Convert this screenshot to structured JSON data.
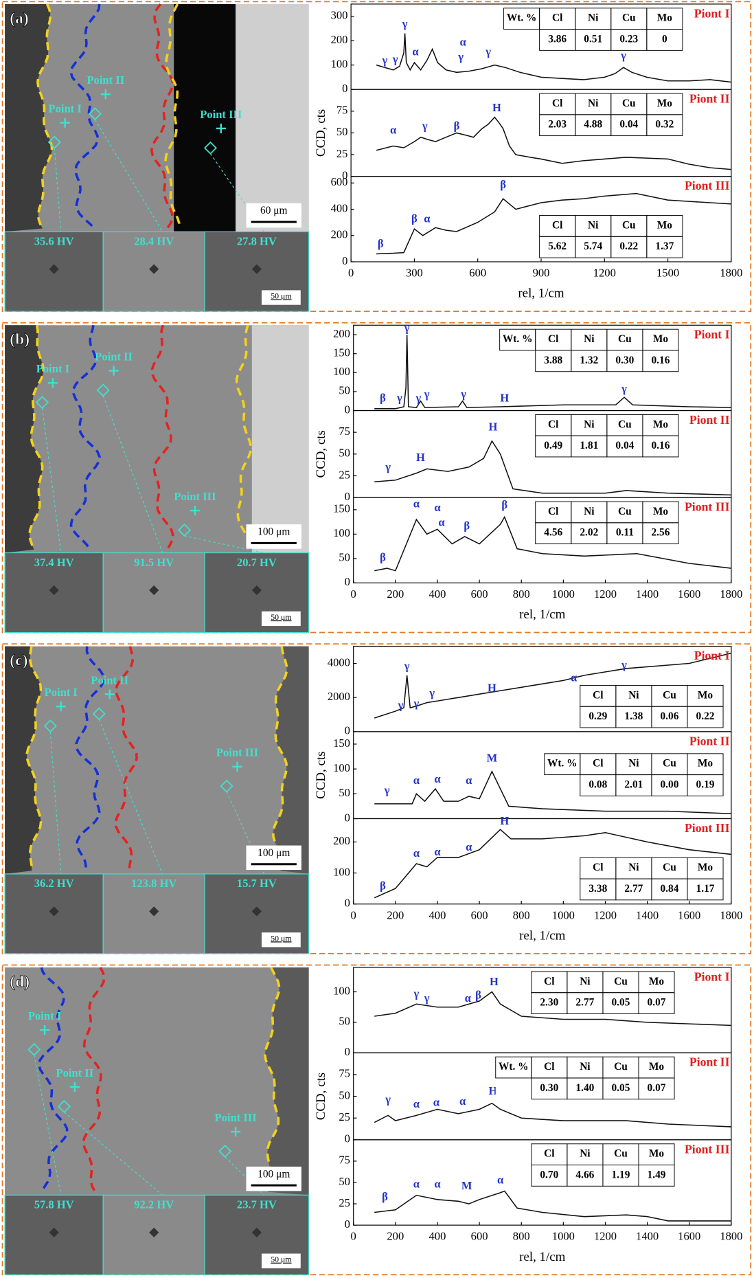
{
  "chart_data": [
    {
      "type": "line",
      "title": "Piont I",
      "xlim": [
        0,
        1800
      ],
      "ylim": [
        0,
        350
      ],
      "yticks": [
        0,
        100,
        200,
        300
      ],
      "x": [
        120,
        160,
        200,
        230,
        250,
        255,
        262,
        280,
        300,
        330,
        360,
        385,
        410,
        450,
        500,
        560,
        620,
        680,
        730,
        800,
        900,
        1000,
        1100,
        1200,
        1250,
        1290,
        1330,
        1400,
        1500,
        1600,
        1700,
        1800
      ],
      "values": [
        100,
        90,
        80,
        95,
        150,
        230,
        110,
        80,
        110,
        80,
        120,
        165,
        110,
        80,
        70,
        75,
        85,
        100,
        90,
        70,
        50,
        45,
        40,
        50,
        65,
        90,
        70,
        50,
        35,
        35,
        40,
        30
      ],
      "annotations": [
        {
          "text": "γ",
          "x": 160,
          "y": 115
        },
        {
          "text": "γ",
          "x": 210,
          "y": 120
        },
        {
          "text": "γ",
          "x": 255,
          "y": 265
        },
        {
          "text": "α",
          "x": 305,
          "y": 150
        },
        {
          "text": "γ",
          "x": 520,
          "y": 130
        },
        {
          "text": "α",
          "x": 530,
          "y": 190
        },
        {
          "text": "γ",
          "x": 650,
          "y": 150
        },
        {
          "text": "γ",
          "x": 1290,
          "y": 135
        }
      ],
      "table": {
        "header": [
          "Wt. %",
          "Cl",
          "Ni",
          "Cu",
          "Mo"
        ],
        "row": [
          "3.86",
          "0.51",
          "0.23",
          "0"
        ]
      }
    },
    {
      "type": "line",
      "title": "Piont II",
      "xlim": [
        0,
        1800
      ],
      "ylim": [
        0,
        100
      ],
      "yticks": [
        0,
        25,
        50,
        75
      ],
      "ylabel": "CCD, cts",
      "x": [
        120,
        200,
        250,
        300,
        330,
        370,
        400,
        450,
        500,
        550,
        580,
        620,
        650,
        680,
        700,
        720,
        750,
        780,
        850,
        900,
        1000,
        1100,
        1200,
        1300,
        1400,
        1500,
        1600,
        1700,
        1800
      ],
      "values": [
        30,
        35,
        33,
        40,
        45,
        42,
        40,
        45,
        50,
        47,
        45,
        55,
        60,
        68,
        62,
        55,
        35,
        25,
        22,
        20,
        15,
        18,
        20,
        22,
        21,
        20,
        14,
        10,
        8
      ],
      "annotations": [
        {
          "text": "α",
          "x": 200,
          "y": 52
        },
        {
          "text": "γ",
          "x": 350,
          "y": 57
        },
        {
          "text": "β",
          "x": 500,
          "y": 57
        },
        {
          "text": "H",
          "x": 690,
          "y": 78
        }
      ],
      "table": {
        "header": [
          "Cl",
          "Ni",
          "Cu",
          "Mo"
        ],
        "row": [
          "2.03",
          "4.88",
          "0.04",
          "0.32"
        ]
      }
    },
    {
      "type": "line",
      "title": "Piont III",
      "xlim": [
        0,
        1800
      ],
      "ylim": [
        0,
        650
      ],
      "yticks": [
        0,
        200,
        400,
        600
      ],
      "xticks": [
        0,
        300,
        600,
        900,
        1200,
        1500,
        1800
      ],
      "xlabel": "rel, 1/cm",
      "x": [
        120,
        200,
        250,
        300,
        340,
        400,
        450,
        500,
        600,
        680,
        720,
        780,
        900,
        1000,
        1100,
        1200,
        1350,
        1500,
        1600,
        1700,
        1800
      ],
      "values": [
        60,
        65,
        70,
        250,
        200,
        260,
        240,
        230,
        300,
        380,
        480,
        400,
        450,
        470,
        480,
        500,
        520,
        470,
        460,
        450,
        440
      ],
      "annotations": [
        {
          "text": "β",
          "x": 140,
          "y": 130
        },
        {
          "text": "β",
          "x": 300,
          "y": 320
        },
        {
          "text": "α",
          "x": 360,
          "y": 320
        },
        {
          "text": "β",
          "x": 720,
          "y": 580
        }
      ],
      "table": {
        "header": [
          "Cl",
          "Ni",
          "Cu",
          "Mo"
        ],
        "row": [
          "5.62",
          "5.74",
          "0.22",
          "1.37"
        ]
      }
    },
    {
      "type": "line",
      "title": "Piont I",
      "xlim": [
        0,
        1800
      ],
      "ylim": [
        0,
        225
      ],
      "yticks": [
        0,
        50,
        100,
        150,
        200
      ],
      "x": [
        100,
        200,
        240,
        250,
        255,
        262,
        300,
        320,
        340,
        500,
        520,
        540,
        700,
        1000,
        1250,
        1290,
        1330,
        1600,
        1800
      ],
      "values": [
        5,
        5,
        10,
        60,
        200,
        10,
        8,
        25,
        8,
        10,
        25,
        8,
        10,
        15,
        15,
        35,
        15,
        10,
        8
      ],
      "annotations": [
        {
          "text": "β",
          "x": 140,
          "y": 30
        },
        {
          "text": "γ",
          "x": 220,
          "y": 30
        },
        {
          "text": "γ",
          "x": 255,
          "y": 215
        },
        {
          "text": "γ",
          "x": 310,
          "y": 30
        },
        {
          "text": "γ",
          "x": 350,
          "y": 40
        },
        {
          "text": "γ",
          "x": 525,
          "y": 40
        },
        {
          "text": "H",
          "x": 720,
          "y": 30
        },
        {
          "text": "γ",
          "x": 1290,
          "y": 55
        }
      ],
      "table": {
        "header": [
          "Wt. %",
          "Cl",
          "Ni",
          "Cu",
          "Mo"
        ],
        "row": [
          "3.88",
          "1.32",
          "0.30",
          "0.16"
        ]
      }
    },
    {
      "type": "line",
      "title": "Piont II",
      "xlim": [
        0,
        1800
      ],
      "ylim": [
        0,
        100
      ],
      "yticks": [
        0,
        25,
        50,
        75
      ],
      "ylabel": "CCD, cts",
      "x": [
        100,
        200,
        300,
        350,
        450,
        550,
        620,
        660,
        700,
        760,
        900,
        1200,
        1300,
        1500,
        1800
      ],
      "values": [
        18,
        20,
        28,
        33,
        30,
        35,
        45,
        65,
        50,
        10,
        5,
        5,
        8,
        5,
        3
      ],
      "annotations": [
        {
          "text": "γ",
          "x": 165,
          "y": 34
        },
        {
          "text": "H",
          "x": 320,
          "y": 45
        },
        {
          "text": "H",
          "x": 665,
          "y": 80
        }
      ],
      "table": {
        "header": [
          "Cl",
          "Ni",
          "Cu",
          "Mo"
        ],
        "row": [
          "0.49",
          "1.81",
          "0.04",
          "0.16"
        ]
      }
    },
    {
      "type": "line",
      "title": "Piont III",
      "xlim": [
        0,
        1800
      ],
      "ylim": [
        0,
        175
      ],
      "yticks": [
        0,
        50,
        100,
        150
      ],
      "xticks": [
        0,
        200,
        400,
        600,
        800,
        1000,
        1200,
        1400,
        1600,
        1800
      ],
      "xlabel": "rel, 1/cm",
      "x": [
        100,
        160,
        200,
        300,
        350,
        400,
        470,
        530,
        600,
        700,
        720,
        780,
        900,
        1100,
        1350,
        1600,
        1800
      ],
      "values": [
        25,
        30,
        25,
        130,
        100,
        110,
        80,
        95,
        80,
        120,
        135,
        70,
        60,
        55,
        60,
        40,
        30
      ],
      "annotations": [
        {
          "text": "β",
          "x": 140,
          "y": 50
        },
        {
          "text": "α",
          "x": 300,
          "y": 160
        },
        {
          "text": "α",
          "x": 400,
          "y": 152
        },
        {
          "text": "α",
          "x": 420,
          "y": 122
        },
        {
          "text": "β",
          "x": 540,
          "y": 115
        },
        {
          "text": "β",
          "x": 720,
          "y": 158
        }
      ],
      "table": {
        "header": [
          "Cl",
          "Ni",
          "Cu",
          "Mo"
        ],
        "row": [
          "4.56",
          "2.02",
          "0.11",
          "2.56"
        ]
      }
    },
    {
      "type": "line",
      "title": "Piont I",
      "xlim": [
        0,
        1800
      ],
      "ylim": [
        0,
        5000
      ],
      "yticks": [
        0,
        2000,
        4000
      ],
      "x": [
        100,
        200,
        240,
        255,
        270,
        300,
        350,
        500,
        700,
        900,
        1000,
        1100,
        1300,
        1500,
        1600,
        1800
      ],
      "values": [
        800,
        1200,
        1400,
        3300,
        1400,
        1500,
        1700,
        2000,
        2400,
        2800,
        3000,
        3300,
        3700,
        3900,
        4000,
        4600
      ],
      "annotations": [
        {
          "text": "γ",
          "x": 225,
          "y": 1500
        },
        {
          "text": "γ",
          "x": 255,
          "y": 3800
        },
        {
          "text": "γ",
          "x": 300,
          "y": 1600
        },
        {
          "text": "γ",
          "x": 375,
          "y": 2200
        },
        {
          "text": "H",
          "x": 660,
          "y": 2500
        },
        {
          "text": "α",
          "x": 1050,
          "y": 3100
        },
        {
          "text": "γ",
          "x": 1290,
          "y": 3850
        }
      ],
      "table": {
        "header": [
          "Cl",
          "Ni",
          "Cu",
          "Mo"
        ],
        "row": [
          "0.29",
          "1.38",
          "0.06",
          "0.22"
        ]
      }
    },
    {
      "type": "line",
      "title": "Piont II",
      "xlim": [
        0,
        1800
      ],
      "ylim": [
        0,
        175
      ],
      "yticks": [
        0,
        50,
        100,
        150
      ],
      "ylabel": "CCD, cts",
      "x": [
        100,
        200,
        280,
        300,
        340,
        390,
        430,
        500,
        550,
        600,
        660,
        700,
        740,
        900,
        1200,
        1500,
        1800
      ],
      "values": [
        30,
        30,
        30,
        50,
        35,
        60,
        35,
        35,
        45,
        40,
        95,
        60,
        25,
        20,
        15,
        15,
        10
      ],
      "annotations": [
        {
          "text": "γ",
          "x": 160,
          "y": 55
        },
        {
          "text": "α",
          "x": 300,
          "y": 75
        },
        {
          "text": "α",
          "x": 400,
          "y": 78
        },
        {
          "text": "α",
          "x": 550,
          "y": 75
        },
        {
          "text": "M",
          "x": 660,
          "y": 120
        }
      ],
      "table": {
        "header": [
          "Wt. %",
          "Cl",
          "Ni",
          "Cu",
          "Mo"
        ],
        "row": [
          "0.08",
          "2.01",
          "0.00",
          "0.19"
        ]
      }
    },
    {
      "type": "line",
      "title": "Piont III",
      "xlim": [
        0,
        1800
      ],
      "ylim": [
        0,
        275
      ],
      "yticks": [
        0,
        100,
        200
      ],
      "xticks": [
        0,
        200,
        400,
        600,
        800,
        1000,
        1200,
        1400,
        1600,
        1800
      ],
      "xlabel": "rel, 1/cm",
      "x": [
        100,
        200,
        300,
        350,
        400,
        500,
        600,
        700,
        750,
        900,
        1100,
        1200,
        1400,
        1600,
        1800
      ],
      "values": [
        20,
        50,
        130,
        120,
        150,
        150,
        175,
        240,
        210,
        210,
        220,
        230,
        200,
        175,
        160
      ],
      "annotations": [
        {
          "text": "β",
          "x": 140,
          "y": 55
        },
        {
          "text": "α",
          "x": 300,
          "y": 160
        },
        {
          "text": "α",
          "x": 400,
          "y": 165
        },
        {
          "text": "α",
          "x": 550,
          "y": 180
        },
        {
          "text": "H",
          "x": 720,
          "y": 265
        }
      ],
      "table": {
        "header": [
          "Cl",
          "Ni",
          "Cu",
          "Mo"
        ],
        "row": [
          "3.38",
          "2.77",
          "0.84",
          "1.17"
        ]
      }
    },
    {
      "type": "line",
      "title": "Piont I",
      "xlim": [
        0,
        1800
      ],
      "ylim": [
        0,
        140
      ],
      "yticks": [
        0,
        50,
        100
      ],
      "x": [
        100,
        200,
        300,
        400,
        500,
        600,
        660,
        700,
        800,
        1000,
        1200,
        1400,
        1800
      ],
      "values": [
        60,
        65,
        80,
        75,
        75,
        85,
        100,
        80,
        60,
        55,
        55,
        50,
        45
      ],
      "annotations": [
        {
          "text": "γ",
          "x": 300,
          "y": 95
        },
        {
          "text": "γ",
          "x": 350,
          "y": 88
        },
        {
          "text": "α",
          "x": 545,
          "y": 88
        },
        {
          "text": "β",
          "x": 595,
          "y": 93
        },
        {
          "text": "H",
          "x": 670,
          "y": 115
        }
      ],
      "table": {
        "header": [
          "Cl",
          "Ni",
          "Cu",
          "Mo"
        ],
        "row": [
          "2.30",
          "2.77",
          "0.05",
          "0.07"
        ]
      }
    },
    {
      "type": "line",
      "title": "Piont II",
      "xlim": [
        0,
        1800
      ],
      "ylim": [
        0,
        100
      ],
      "yticks": [
        0,
        25,
        50,
        75
      ],
      "ylabel": "CCD, cts",
      "x": [
        100,
        165,
        200,
        300,
        400,
        500,
        600,
        660,
        700,
        800,
        1000,
        1300,
        1500,
        1800
      ],
      "values": [
        20,
        28,
        22,
        28,
        35,
        30,
        35,
        42,
        35,
        25,
        22,
        22,
        18,
        15
      ],
      "annotations": [
        {
          "text": "γ",
          "x": 165,
          "y": 45
        },
        {
          "text": "α",
          "x": 300,
          "y": 40
        },
        {
          "text": "α",
          "x": 395,
          "y": 42
        },
        {
          "text": "α",
          "x": 520,
          "y": 43
        },
        {
          "text": "H",
          "x": 665,
          "y": 55
        }
      ],
      "table": {
        "header": [
          "Wt. %",
          "Cl",
          "Ni",
          "Cu",
          "Mo"
        ],
        "row": [
          "0.30",
          "1.40",
          "0.05",
          "0.07"
        ]
      }
    },
    {
      "type": "line",
      "title": "Piont III",
      "xlim": [
        0,
        1800
      ],
      "ylim": [
        0,
        100
      ],
      "yticks": [
        0,
        25,
        50,
        75
      ],
      "xticks": [
        0,
        200,
        400,
        600,
        800,
        1000,
        1200,
        1400,
        1600,
        1800
      ],
      "xlabel": "rel, 1/cm",
      "x": [
        100,
        200,
        300,
        400,
        500,
        550,
        600,
        700,
        720,
        780,
        900,
        1100,
        1300,
        1400,
        1500,
        1800
      ],
      "values": [
        15,
        18,
        35,
        30,
        28,
        25,
        30,
        38,
        40,
        20,
        15,
        10,
        12,
        10,
        5,
        5
      ],
      "annotations": [
        {
          "text": "β",
          "x": 150,
          "y": 32
        },
        {
          "text": "α",
          "x": 300,
          "y": 47
        },
        {
          "text": "α",
          "x": 400,
          "y": 47
        },
        {
          "text": "M",
          "x": 540,
          "y": 45
        },
        {
          "text": "α",
          "x": 700,
          "y": 52
        }
      ],
      "table": {
        "header": [
          "Cl",
          "Ni",
          "Cu",
          "Mo"
        ],
        "row": [
          "0.70",
          "4.66",
          "1.19",
          "1.49"
        ]
      }
    }
  ],
  "sem_panels": [
    {
      "label": "(a)",
      "points": [
        "Point I",
        "Point II",
        "Point III"
      ],
      "scale_bar": "60 μm",
      "hardness": [
        "35.6 HV",
        "28.4 HV",
        "27.8 HV"
      ],
      "inset_scale": "50 μm"
    },
    {
      "label": "(b)",
      "points": [
        "Point I",
        "Point II",
        "Point III"
      ],
      "scale_bar": "100 μm",
      "hardness": [
        "37.4 HV",
        "91.5 HV",
        "20.7 HV"
      ],
      "inset_scale": "50 μm"
    },
    {
      "label": "(c)",
      "points": [
        "Point I",
        "Point II",
        "Point III"
      ],
      "scale_bar": "100 μm",
      "hardness": [
        "36.2 HV",
        "123.8 HV",
        "15.7 HV"
      ],
      "inset_scale": "50 μm"
    },
    {
      "label": "(d)",
      "points": [
        "Point I",
        "Point II",
        "Point III"
      ],
      "scale_bar": "100 μm",
      "hardness": [
        "57.8 HV",
        "92.2 HV",
        "23.7 HV"
      ],
      "inset_scale": "50 μm"
    }
  ]
}
